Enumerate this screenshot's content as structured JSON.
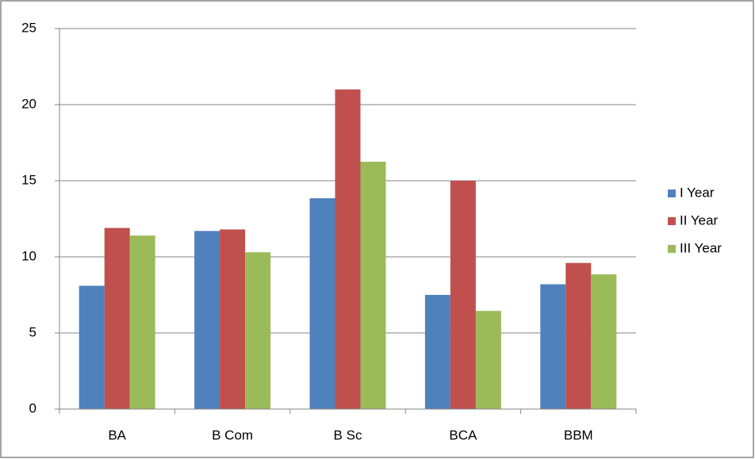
{
  "chart_data": {
    "type": "bar",
    "categories": [
      "BA",
      "B Com",
      "B Sc",
      "BCA",
      "BBM"
    ],
    "series": [
      {
        "name": "I Year",
        "color": "#4f81bd",
        "values": [
          8.1,
          11.7,
          13.85,
          7.5,
          8.2
        ]
      },
      {
        "name": "II Year",
        "color": "#c0504d",
        "values": [
          11.9,
          11.8,
          21.0,
          15.0,
          9.6
        ]
      },
      {
        "name": "III Year",
        "color": "#9bbb59",
        "values": [
          11.4,
          10.3,
          16.25,
          6.45,
          8.85
        ]
      }
    ],
    "ylim": [
      0,
      25
    ],
    "yticks": [
      0,
      5,
      10,
      15,
      20,
      25
    ],
    "grid": true,
    "legend": "right"
  }
}
